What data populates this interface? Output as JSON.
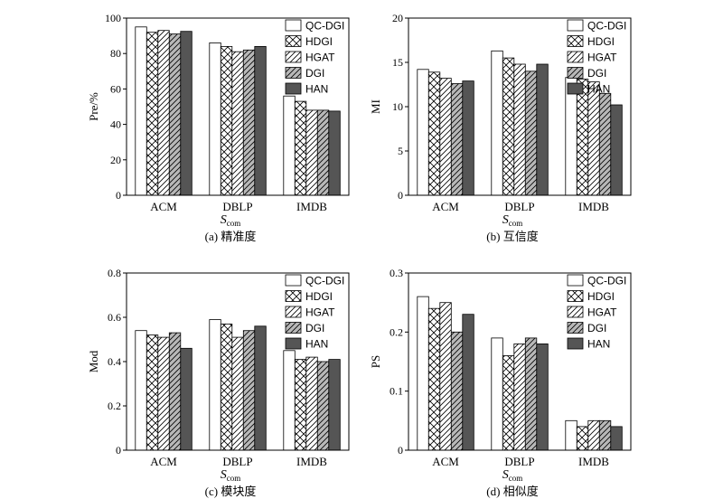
{
  "chart_data": [
    {
      "type": "bar",
      "caption": "(a) 精准度",
      "ylabel": "Pre/%",
      "xlabel_main": "S",
      "xlabel_sub": "com",
      "ylim": [
        0,
        100
      ],
      "yticks": [
        0,
        20,
        40,
        60,
        80,
        100
      ],
      "categories": [
        "ACM",
        "DBLP",
        "IMDB"
      ],
      "series": [
        {
          "name": "QC-DGI",
          "values": [
            95,
            86,
            56
          ]
        },
        {
          "name": "HDGI",
          "values": [
            92,
            84,
            53
          ]
        },
        {
          "name": "HGAT",
          "values": [
            93,
            81,
            48
          ]
        },
        {
          "name": "DGI",
          "values": [
            91,
            82,
            48
          ]
        },
        {
          "name": "HAN",
          "values": [
            92.5,
            84,
            47.5
          ]
        }
      ]
    },
    {
      "type": "bar",
      "caption": "(b) 互信度",
      "ylabel": "MI",
      "xlabel_main": "S",
      "xlabel_sub": "com",
      "ylim": [
        0,
        20
      ],
      "yticks": [
        0,
        5,
        10,
        15,
        20
      ],
      "categories": [
        "ACM",
        "DBLP",
        "IMDB"
      ],
      "series": [
        {
          "name": "QC-DGI",
          "values": [
            14.2,
            16.3,
            13.3
          ]
        },
        {
          "name": "HDGI",
          "values": [
            13.9,
            15.5,
            13.1
          ]
        },
        {
          "name": "HGAT",
          "values": [
            13.2,
            14.8,
            12.8
          ]
        },
        {
          "name": "DGI",
          "values": [
            12.6,
            14.0,
            11.5
          ]
        },
        {
          "name": "HAN",
          "values": [
            12.9,
            14.8,
            10.2
          ]
        }
      ]
    },
    {
      "type": "bar",
      "caption": "(c) 模块度",
      "ylabel": "Mod",
      "xlabel_main": "S",
      "xlabel_sub": "com",
      "ylim": [
        0,
        0.8
      ],
      "yticks": [
        0,
        0.2,
        0.4,
        0.6,
        0.8
      ],
      "categories": [
        "ACM",
        "DBLP",
        "IMDB"
      ],
      "series": [
        {
          "name": "QC-DGI",
          "values": [
            0.54,
            0.59,
            0.45
          ]
        },
        {
          "name": "HDGI",
          "values": [
            0.52,
            0.57,
            0.41
          ]
        },
        {
          "name": "HGAT",
          "values": [
            0.51,
            0.51,
            0.42
          ]
        },
        {
          "name": "DGI",
          "values": [
            0.53,
            0.54,
            0.4
          ]
        },
        {
          "name": "HAN",
          "values": [
            0.46,
            0.56,
            0.41
          ]
        }
      ]
    },
    {
      "type": "bar",
      "caption": "(d) 相似度",
      "ylabel": "PS",
      "xlabel_main": "S",
      "xlabel_sub": "com",
      "ylim": [
        0,
        0.3
      ],
      "yticks": [
        0,
        0.1,
        0.2,
        0.3
      ],
      "categories": [
        "ACM",
        "DBLP",
        "IMDB"
      ],
      "series": [
        {
          "name": "QC-DGI",
          "values": [
            0.26,
            0.19,
            0.05
          ]
        },
        {
          "name": "HDGI",
          "values": [
            0.24,
            0.16,
            0.04
          ]
        },
        {
          "name": "HGAT",
          "values": [
            0.25,
            0.18,
            0.05
          ]
        },
        {
          "name": "DGI",
          "values": [
            0.2,
            0.19,
            0.05
          ]
        },
        {
          "name": "HAN",
          "values": [
            0.23,
            0.18,
            0.04
          ]
        }
      ]
    }
  ],
  "style": {
    "bar_stroke": "#000000",
    "fills": [
      "#ffffff",
      "pattern-cross",
      "pattern-diag",
      "pattern-diag-gray",
      "#555555"
    ],
    "legend_position": "top-right",
    "grid": false
  }
}
